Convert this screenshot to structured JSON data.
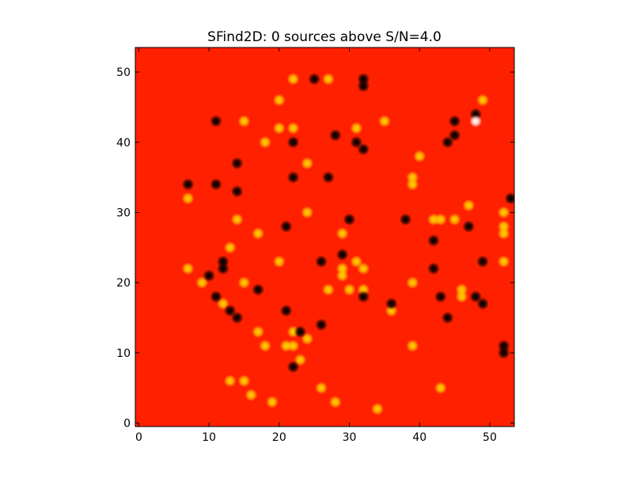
{
  "chart_data": {
    "type": "image",
    "title": "SFind2D: 0 sources above S/N=4.0",
    "background": "#ff2000",
    "xlim": [
      -0.5,
      53.5
    ],
    "ylim": [
      -0.5,
      53.5
    ],
    "xticks": [
      0,
      10,
      20,
      30,
      40,
      50
    ],
    "yticks": [
      0,
      10,
      20,
      30,
      40,
      50
    ],
    "series": [
      {
        "color": "#ffd000",
        "x": [
          22,
          27,
          20,
          49,
          15,
          35,
          20,
          22,
          31,
          18,
          40,
          24,
          39,
          39,
          7,
          47,
          52,
          24,
          14,
          42,
          43,
          45,
          29,
          17,
          52,
          52,
          13,
          20,
          31,
          52,
          7,
          32,
          29,
          29,
          9,
          15,
          39,
          27,
          30,
          32,
          46,
          46,
          12,
          36,
          17,
          22,
          18,
          21,
          22,
          24,
          39,
          23,
          13,
          15,
          16,
          26,
          43,
          19,
          28,
          34
        ],
        "y": [
          49,
          49,
          46,
          46,
          43,
          43,
          42,
          42,
          42,
          40,
          38,
          37,
          35,
          34,
          32,
          31,
          30,
          30,
          29,
          29,
          29,
          29,
          27,
          27,
          28,
          27,
          25,
          23,
          23,
          23,
          22,
          22,
          22,
          21,
          20,
          20,
          20,
          19,
          19,
          19,
          19,
          18,
          17,
          16,
          13,
          13,
          11,
          11,
          11,
          12,
          11,
          9,
          6,
          6,
          4,
          5,
          5,
          3,
          3,
          2
        ]
      },
      {
        "color": "#000000",
        "x": [
          25,
          32,
          32,
          11,
          45,
          48,
          28,
          45,
          22,
          31,
          32,
          44,
          14,
          22,
          27,
          7,
          11,
          14,
          53,
          30,
          38,
          21,
          47,
          42,
          26,
          49,
          29,
          12,
          12,
          10,
          42,
          17,
          11,
          32,
          43,
          48,
          49,
          36,
          13,
          14,
          21,
          44,
          26,
          23,
          52,
          52,
          22
        ],
        "y": [
          49,
          49,
          48,
          43,
          43,
          44,
          41,
          41,
          40,
          40,
          39,
          40,
          37,
          35,
          35,
          34,
          34,
          33,
          32,
          29,
          29,
          28,
          28,
          26,
          23,
          23,
          24,
          23,
          22,
          21,
          22,
          19,
          18,
          18,
          18,
          18,
          17,
          17,
          16,
          15,
          16,
          15,
          14,
          13,
          11,
          10,
          8
        ]
      },
      {
        "color": "#ffffff",
        "x": [
          48
        ],
        "y": [
          43
        ]
      }
    ]
  }
}
